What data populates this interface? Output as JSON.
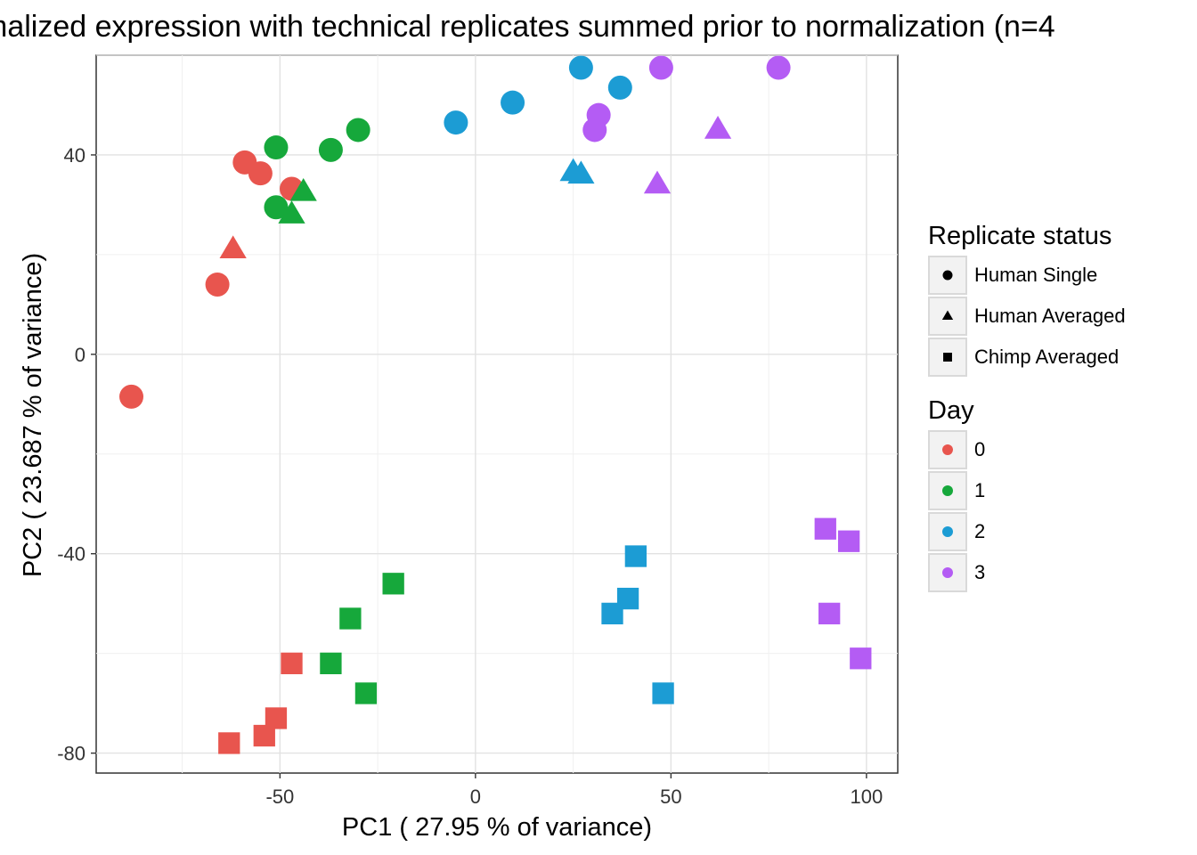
{
  "chart_data": {
    "type": "scatter",
    "title": "malized expression with technical replicates summed prior to normalization (n=4",
    "xlabel": "PC1 ( 27.95 % of variance)",
    "ylabel": "PC2 ( 23.687 % of variance)",
    "xlim": [
      -97,
      108
    ],
    "ylim": [
      -84,
      60
    ],
    "xticks": [
      -50,
      0,
      50,
      100
    ],
    "yticks": [
      -80,
      -40,
      0,
      40
    ],
    "grid": true,
    "legend_position": "right",
    "legends": [
      {
        "title": "Replicate status",
        "entries": [
          {
            "label": "Human Single",
            "shape": "circle"
          },
          {
            "label": "Human Averaged",
            "shape": "triangle"
          },
          {
            "label": "Chimp Averaged",
            "shape": "square"
          }
        ]
      },
      {
        "title": "Day",
        "entries": [
          {
            "label": "0",
            "color": "#E8554E"
          },
          {
            "label": "1",
            "color": "#16A83B"
          },
          {
            "label": "2",
            "color": "#1C9CD4"
          },
          {
            "label": "3",
            "color": "#B45CF4"
          }
        ]
      }
    ],
    "series": [
      {
        "day": "0",
        "shape": "circle",
        "points": [
          [
            -59,
            38.5
          ],
          [
            -55,
            36.3
          ],
          [
            -47,
            33.2
          ],
          [
            -66,
            14
          ],
          [
            -88,
            -8.5
          ]
        ]
      },
      {
        "day": "0",
        "shape": "triangle",
        "points": [
          [
            -62,
            21
          ]
        ]
      },
      {
        "day": "0",
        "shape": "square",
        "points": [
          [
            -47,
            -62
          ],
          [
            -51,
            -73
          ],
          [
            -54,
            -76.5
          ],
          [
            -63,
            -78
          ]
        ]
      },
      {
        "day": "1",
        "shape": "circle",
        "points": [
          [
            -51,
            41.5
          ],
          [
            -37,
            41
          ],
          [
            -30,
            45
          ],
          [
            -51,
            29.5
          ]
        ]
      },
      {
        "day": "1",
        "shape": "triangle",
        "points": [
          [
            -44,
            32.5
          ],
          [
            -47,
            28
          ]
        ]
      },
      {
        "day": "1",
        "shape": "square",
        "points": [
          [
            -21,
            -46
          ],
          [
            -32,
            -53
          ],
          [
            -37,
            -62
          ],
          [
            -28,
            -68
          ]
        ]
      },
      {
        "day": "2",
        "shape": "circle",
        "points": [
          [
            -5,
            46.5
          ],
          [
            9.5,
            50.5
          ],
          [
            27,
            57.5
          ],
          [
            37,
            53.5
          ]
        ]
      },
      {
        "day": "2",
        "shape": "triangle",
        "points": [
          [
            25,
            36.5
          ],
          [
            27,
            36
          ]
        ]
      },
      {
        "day": "2",
        "shape": "square",
        "points": [
          [
            41,
            -40.5
          ],
          [
            39,
            -49
          ],
          [
            35,
            -52
          ],
          [
            48,
            -68
          ]
        ]
      },
      {
        "day": "3",
        "shape": "circle",
        "points": [
          [
            47.5,
            57.5
          ],
          [
            77.5,
            57.5
          ],
          [
            31.5,
            48
          ],
          [
            30.5,
            45
          ]
        ]
      },
      {
        "day": "3",
        "shape": "triangle",
        "points": [
          [
            62,
            45
          ],
          [
            46.5,
            34
          ]
        ]
      },
      {
        "day": "3",
        "shape": "square",
        "points": [
          [
            89.5,
            -35
          ],
          [
            95.5,
            -37.5
          ],
          [
            90.5,
            -52
          ],
          [
            98.5,
            -61
          ]
        ]
      }
    ]
  }
}
